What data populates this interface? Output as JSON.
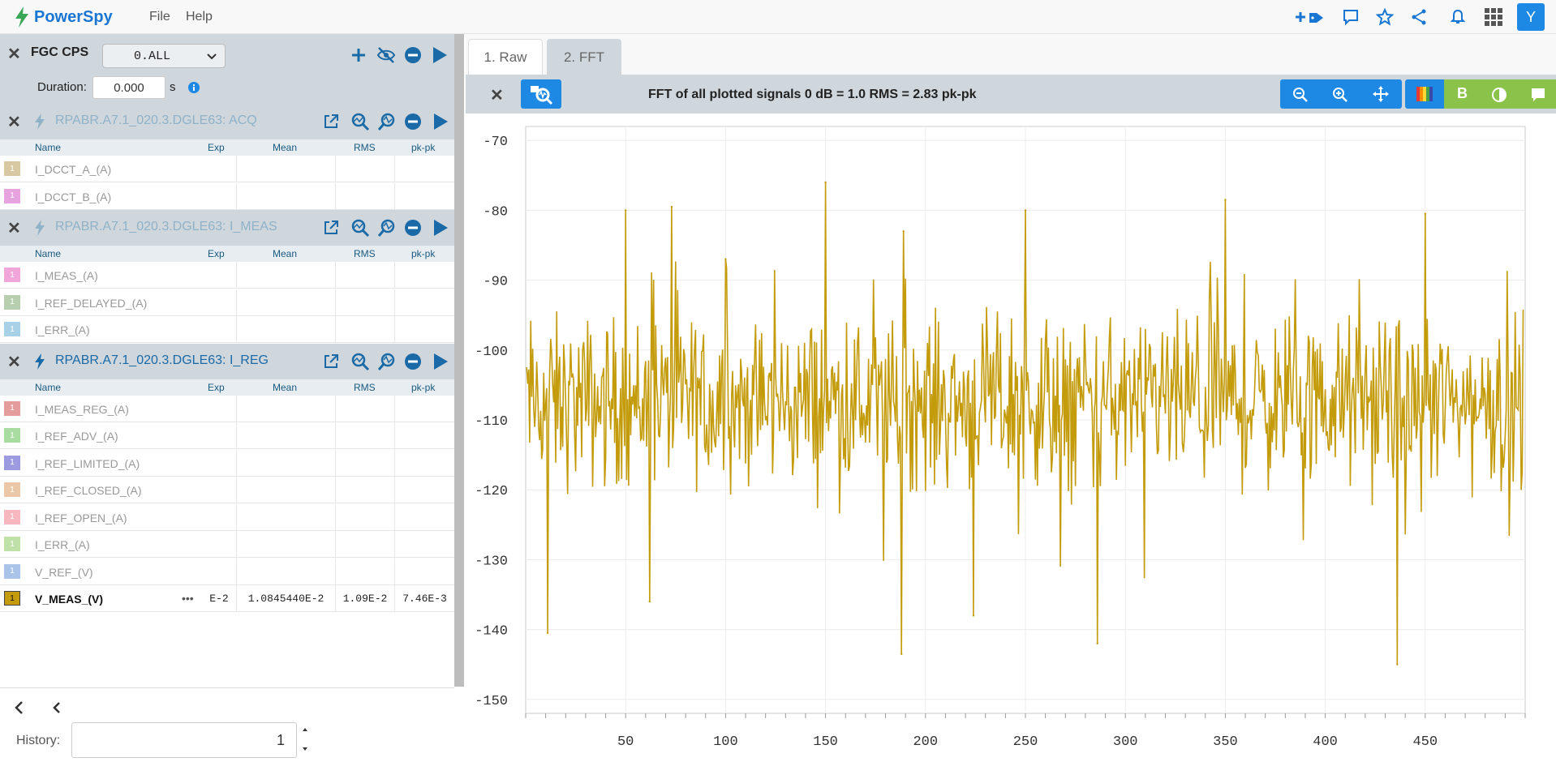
{
  "app": {
    "name": "PowerSpy",
    "menu": [
      "File",
      "Help"
    ],
    "user_initial": "Y",
    "top_icons": [
      "add-tag-icon",
      "comment-icon",
      "star-icon",
      "share-icon",
      "bell-icon",
      "apps-grid-icon"
    ]
  },
  "left": {
    "device": "FGC CPS",
    "selector": "0.ALL",
    "duration_label": "Duration:",
    "duration_value": "0.000",
    "duration_unit": "s",
    "columns": [
      "Name",
      "Exp",
      "Mean",
      "RMS",
      "pk-pk"
    ],
    "groups": [
      {
        "title": "RPABR.A7.1_020.3.DGLE63: ACQ",
        "active": false,
        "rows": [
          {
            "name": "I_DCCT_A_(A)",
            "color": "#d9c9a3",
            "exp": "",
            "mean": "",
            "rms": "",
            "pkpk": ""
          },
          {
            "name": "I_DCCT_B_(A)",
            "color": "#e7a3e0",
            "exp": "",
            "mean": "",
            "rms": "",
            "pkpk": ""
          }
        ]
      },
      {
        "title": "RPABR.A7.1_020.3.DGLE63: I_MEAS",
        "active": false,
        "rows": [
          {
            "name": "I_MEAS_(A)",
            "color": "#f0a6d8",
            "exp": "",
            "mean": "",
            "rms": "",
            "pkpk": ""
          },
          {
            "name": "I_REF_DELAYED_(A)",
            "color": "#b7cfae",
            "exp": "",
            "mean": "",
            "rms": "",
            "pkpk": ""
          },
          {
            "name": "I_ERR_(A)",
            "color": "#a8d0e6",
            "exp": "",
            "mean": "",
            "rms": "",
            "pkpk": ""
          }
        ]
      },
      {
        "title": "RPABR.A7.1_020.3.DGLE63: I_REG",
        "active": true,
        "rows": [
          {
            "name": "I_MEAS_REG_(A)",
            "color": "#e49c9c",
            "exp": "",
            "mean": "",
            "rms": "",
            "pkpk": ""
          },
          {
            "name": "I_REF_ADV_(A)",
            "color": "#a9dca0",
            "exp": "",
            "mean": "",
            "rms": "",
            "pkpk": ""
          },
          {
            "name": "I_REF_LIMITED_(A)",
            "color": "#9d9be0",
            "exp": "",
            "mean": "",
            "rms": "",
            "pkpk": ""
          },
          {
            "name": "I_REF_CLOSED_(A)",
            "color": "#eac8a8",
            "exp": "",
            "mean": "",
            "rms": "",
            "pkpk": ""
          },
          {
            "name": "I_REF_OPEN_(A)",
            "color": "#f7b7be",
            "exp": "",
            "mean": "",
            "rms": "",
            "pkpk": ""
          },
          {
            "name": "I_ERR_(A)",
            "color": "#bfe0a6",
            "exp": "",
            "mean": "",
            "rms": "",
            "pkpk": ""
          },
          {
            "name": "V_REF_(V)",
            "color": "#a9c4e8",
            "exp": "",
            "mean": "",
            "rms": "",
            "pkpk": ""
          },
          {
            "name": "V_MEAS_(V)",
            "color": "#c39b0b",
            "exp": "E-2",
            "mean": "1.0845440E-2",
            "rms": "1.09E-2",
            "pkpk": "7.46E-3",
            "selected": true
          }
        ]
      }
    ],
    "history_label": "History:",
    "history_value": "1"
  },
  "tabs": [
    "1. Raw",
    "2. FFT"
  ],
  "active_tab": 1,
  "toolbar_title": "FFT of all plotted signals 0 dB = 1.0 RMS = 2.83 pk-pk",
  "chart_data": {
    "type": "line",
    "title": "FFT of all plotted signals 0 dB = 1.0 RMS = 2.83 pk-pk",
    "xlabel": "",
    "ylabel": "",
    "xlim": [
      0,
      500
    ],
    "ylim": [
      -152,
      -68
    ],
    "xticks": [
      50,
      100,
      150,
      200,
      250,
      300,
      350,
      400,
      450
    ],
    "yticks": [
      -70,
      -80,
      -90,
      -100,
      -110,
      -120,
      -130,
      -140,
      -150
    ],
    "grid": true,
    "series": [
      {
        "color": "#c39b0b",
        "baseline_db": -105,
        "noise_range_db": [
          -125,
          -90
        ],
        "peaks": [
          {
            "x": 50,
            "y": -80
          },
          {
            "x": 73,
            "y": -79.5
          },
          {
            "x": 100,
            "y": -87
          },
          {
            "x": 150,
            "y": -76
          },
          {
            "x": 189,
            "y": -83
          },
          {
            "x": 250,
            "y": -80
          },
          {
            "x": 350,
            "y": -78.5
          },
          {
            "x": 450,
            "y": -80.5
          }
        ],
        "dips": [
          {
            "x": 11,
            "y": -140.5
          },
          {
            "x": 62,
            "y": -136
          },
          {
            "x": 188,
            "y": -143.5
          },
          {
            "x": 224,
            "y": -138
          },
          {
            "x": 286,
            "y": -142
          },
          {
            "x": 436,
            "y": -145
          }
        ]
      }
    ]
  }
}
